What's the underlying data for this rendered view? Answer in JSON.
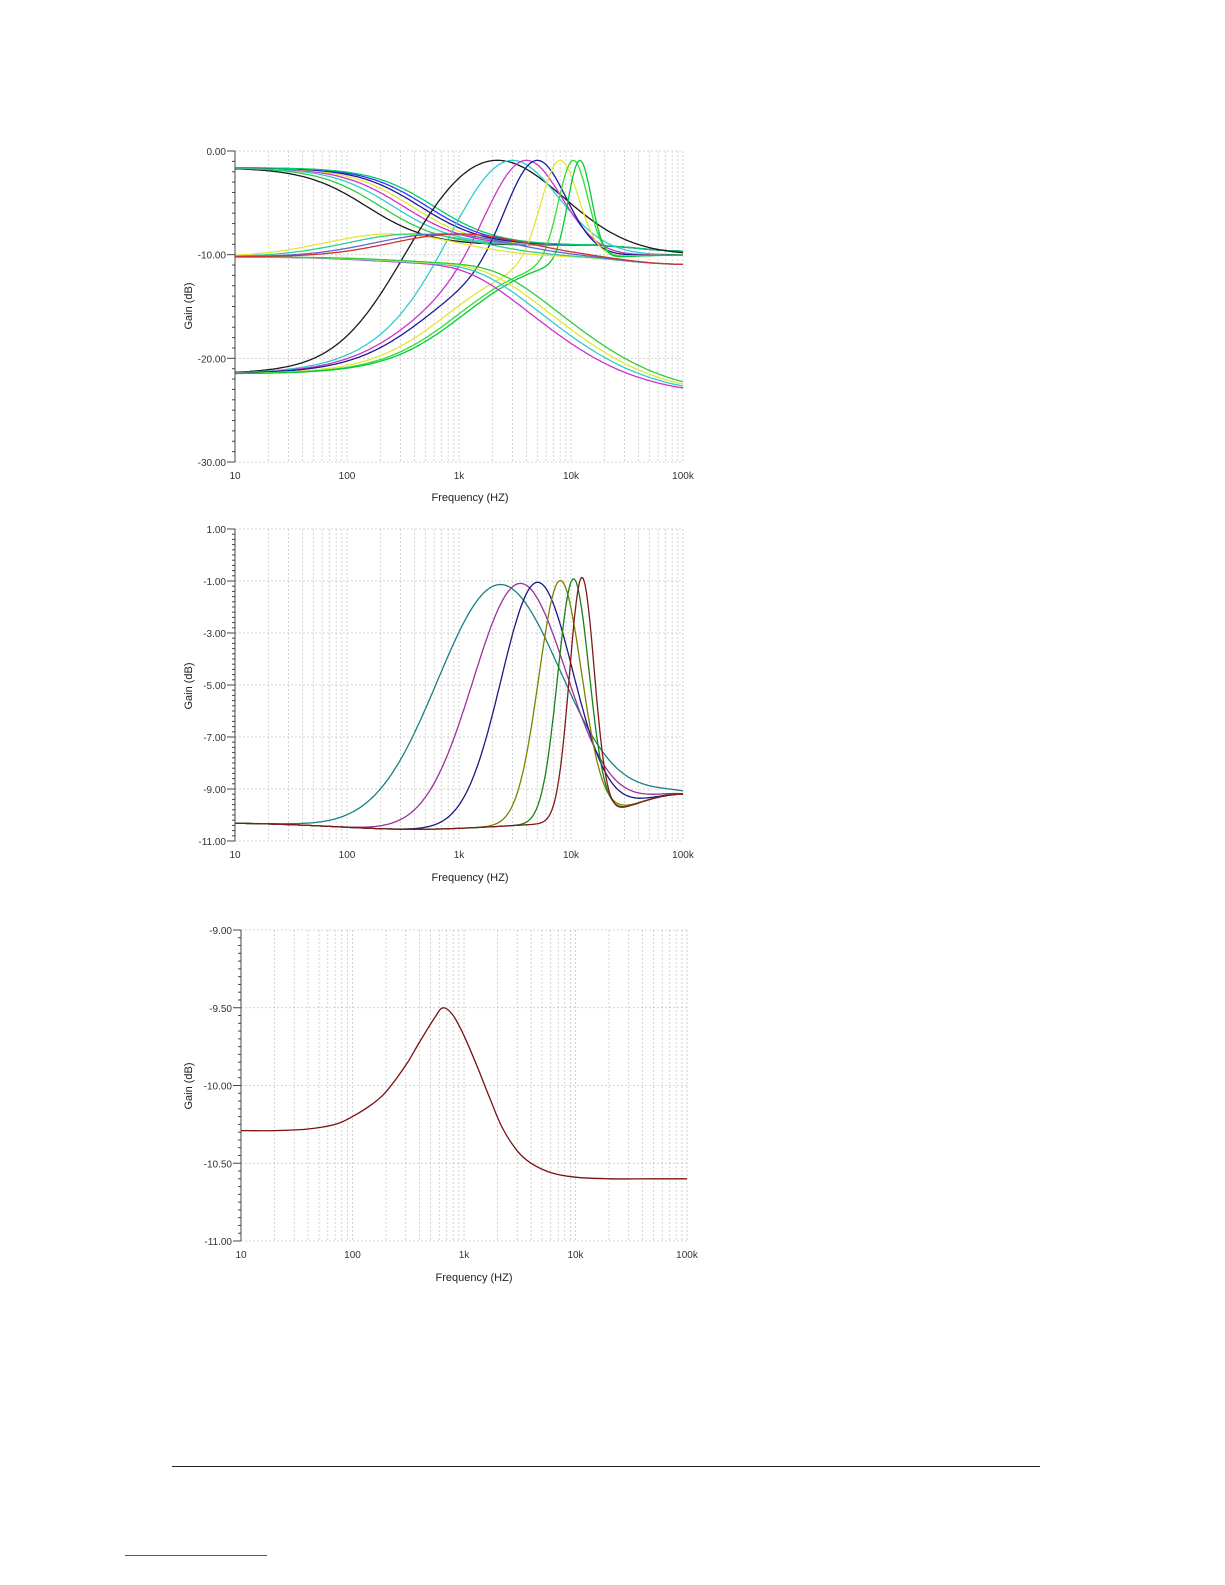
{
  "charts": [
    {
      "chart_data": {
        "type": "line",
        "xscale": "log",
        "xlim": [
          10,
          100000
        ],
        "ylim": [
          -30,
          0
        ],
        "xticks": [
          "10",
          "100",
          "1k",
          "10k",
          "100k"
        ],
        "yticks": [
          "0.00",
          "-10.00",
          "-20.00",
          "-30.00"
        ],
        "xlabel": "Frequency (HZ)",
        "ylabel": "Gain (dB)",
        "grid": true,
        "series": [
          {
            "family": "lowshelf",
            "corner": 150,
            "color": "#1a1a1a"
          },
          {
            "family": "lowshelf",
            "corner": 200,
            "color": "#2ecc40"
          },
          {
            "family": "lowshelf",
            "corner": 260,
            "color": "#33cccc"
          },
          {
            "family": "lowshelf",
            "corner": 320,
            "color": "#cc33cc"
          },
          {
            "family": "lowshelf",
            "corner": 380,
            "color": "#e6e633"
          },
          {
            "family": "lowshelf",
            "corner": 450,
            "color": "#1a1a99"
          },
          {
            "family": "lowshelf",
            "corner": 520,
            "color": "#3333ff"
          },
          {
            "family": "lowshelf",
            "corner": 600,
            "color": "#00cc66"
          },
          {
            "family": "peak",
            "f0": 2200,
            "Q": 0.7,
            "color": "#1a1a1a"
          },
          {
            "family": "peak",
            "f0": 3000,
            "Q": 1.0,
            "color": "#33cccc"
          },
          {
            "family": "peak",
            "f0": 4000,
            "Q": 1.3,
            "color": "#cc33cc"
          },
          {
            "family": "peak",
            "f0": 5000,
            "Q": 1.6,
            "color": "#1a1a99"
          },
          {
            "family": "peak",
            "f0": 8000,
            "Q": 2.5,
            "color": "#e6e633"
          },
          {
            "family": "peak",
            "f0": 10500,
            "Q": 3.2,
            "color": "#33dd33"
          },
          {
            "family": "peak",
            "f0": 12000,
            "Q": 4.0,
            "color": "#00cc33"
          },
          {
            "family": "highshelf",
            "corner": 1200,
            "color": "#cc33cc"
          },
          {
            "family": "highshelf",
            "corner": 1500,
            "color": "#33cccc"
          },
          {
            "family": "highshelf",
            "corner": 1800,
            "color": "#e6e633"
          },
          {
            "family": "highshelf",
            "corner": 2200,
            "color": "#2ecc40"
          },
          {
            "family": "flat-hump",
            "f0": 250,
            "color": "#e6e633"
          },
          {
            "family": "flat-hump",
            "f0": 400,
            "color": "#33cc99"
          },
          {
            "family": "flat-hump",
            "f0": 700,
            "color": "#6666cc"
          },
          {
            "family": "flat-hump",
            "f0": 1000,
            "color": "#cc3333"
          }
        ]
      }
    },
    {
      "chart_data": {
        "type": "line",
        "xscale": "log",
        "xlim": [
          10,
          100000
        ],
        "ylim": [
          -11,
          1
        ],
        "xticks": [
          "10",
          "100",
          "1k",
          "10k",
          "100k"
        ],
        "yticks": [
          "1.00",
          "-1.00",
          "-3.00",
          "-5.00",
          "-7.00",
          "-9.00",
          "-11.00"
        ],
        "xlabel": "Frequency (HZ)",
        "ylabel": "Gain (dB)",
        "grid": true,
        "base_db": -10.3,
        "peak_db": -1.0,
        "series": [
          {
            "f0": 2300,
            "Q": 0.75,
            "color": "#1a8080"
          },
          {
            "f0": 3500,
            "Q": 1.0,
            "color": "#993399"
          },
          {
            "f0": 5000,
            "Q": 1.3,
            "color": "#1a1a80"
          },
          {
            "f0": 8000,
            "Q": 2.2,
            "color": "#808000"
          },
          {
            "f0": 10500,
            "Q": 3.0,
            "color": "#1a801a"
          },
          {
            "f0": 12500,
            "Q": 3.8,
            "color": "#801a1a"
          }
        ]
      }
    },
    {
      "chart_data": {
        "type": "line",
        "xscale": "log",
        "xlim": [
          10,
          100000
        ],
        "ylim": [
          -11,
          -9
        ],
        "xticks": [
          "10",
          "100",
          "1k",
          "10k",
          "100k"
        ],
        "yticks": [
          "-9.00",
          "-9.50",
          "-10.00",
          "-10.50",
          "-11.00"
        ],
        "xlabel": "Frequency (HZ)",
        "ylabel": "Gain (dB)",
        "grid": true,
        "series": [
          {
            "color": "#7a1010",
            "x": [
              10,
              20,
              40,
              70,
              100,
              150,
              200,
              300,
              400,
              550,
              650,
              800,
              1000,
              1300,
              1700,
              2200,
              3000,
              4000,
              6000,
              10000,
              20000,
              50000,
              100000
            ],
            "y": [
              -10.29,
              -10.29,
              -10.28,
              -10.25,
              -10.2,
              -10.12,
              -10.04,
              -9.87,
              -9.72,
              -9.56,
              -9.5,
              -9.55,
              -9.68,
              -9.87,
              -10.08,
              -10.27,
              -10.42,
              -10.5,
              -10.56,
              -10.59,
              -10.6,
              -10.6,
              -10.6
            ]
          }
        ]
      }
    }
  ]
}
